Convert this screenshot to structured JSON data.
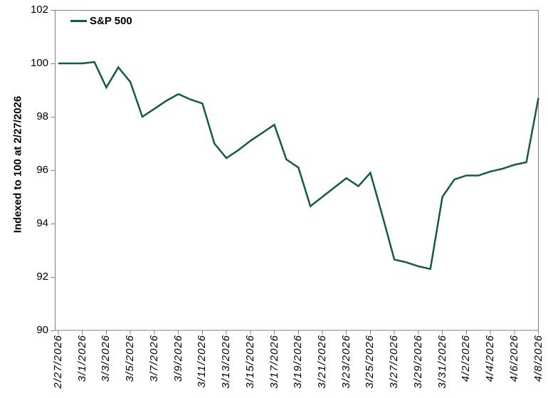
{
  "colors": {
    "series": "#17584A",
    "axis": "#808080",
    "text": "#000000",
    "background": "#FFFFFF"
  },
  "chart_data": {
    "type": "line",
    "title": "",
    "xlabel": "",
    "ylabel": "Indexed to 100 at 2/27/2026",
    "ylim": [
      90,
      102
    ],
    "yticks": [
      90,
      92,
      94,
      96,
      98,
      100,
      102
    ],
    "grid": false,
    "legend": {
      "position": "top-left"
    },
    "xticklabels": [
      "2/27/2026",
      "3/1/2026",
      "3/3/2026",
      "3/5/2026",
      "3/7/2026",
      "3/9/2026",
      "3/11/2026",
      "3/13/2026",
      "3/15/2026",
      "3/17/2026",
      "3/19/2026",
      "3/21/2026",
      "3/23/2026",
      "3/25/2026",
      "3/27/2026",
      "3/29/2026",
      "3/31/2026",
      "4/2/2026",
      "4/4/2026",
      "4/6/2026",
      "4/8/2026"
    ],
    "x": [
      "2/27/2026",
      "2/28/2026",
      "3/1/2026",
      "3/2/2026",
      "3/3/2026",
      "3/4/2026",
      "3/5/2026",
      "3/6/2026",
      "3/7/2026",
      "3/8/2026",
      "3/9/2026",
      "3/10/2026",
      "3/11/2026",
      "3/12/2026",
      "3/13/2026",
      "3/14/2026",
      "3/15/2026",
      "3/16/2026",
      "3/17/2026",
      "3/18/2026",
      "3/19/2026",
      "3/20/2026",
      "3/21/2026",
      "3/22/2026",
      "3/23/2026",
      "3/24/2026",
      "3/25/2026",
      "3/26/2026",
      "3/27/2026",
      "3/28/2026",
      "3/29/2026",
      "3/30/2026",
      "3/31/2026",
      "4/1/2026",
      "4/2/2026",
      "4/3/2026",
      "4/4/2026",
      "4/5/2026",
      "4/6/2026",
      "4/7/2026",
      "4/8/2026"
    ],
    "series": [
      {
        "name": "S&P 500",
        "color": "#17584A",
        "values": [
          100,
          100,
          100,
          100.05,
          99.1,
          99.85,
          99.3,
          98.0,
          98.3,
          98.6,
          98.85,
          98.65,
          98.5,
          97.0,
          96.45,
          96.75,
          97.1,
          97.4,
          97.7,
          96.4,
          96.1,
          94.65,
          95.0,
          95.35,
          95.7,
          95.4,
          95.9,
          94.3,
          92.65,
          92.55,
          92.4,
          92.3,
          95.0,
          95.65,
          95.8,
          95.8,
          95.95,
          96.05,
          96.2,
          96.3,
          98.7
        ]
      }
    ]
  }
}
